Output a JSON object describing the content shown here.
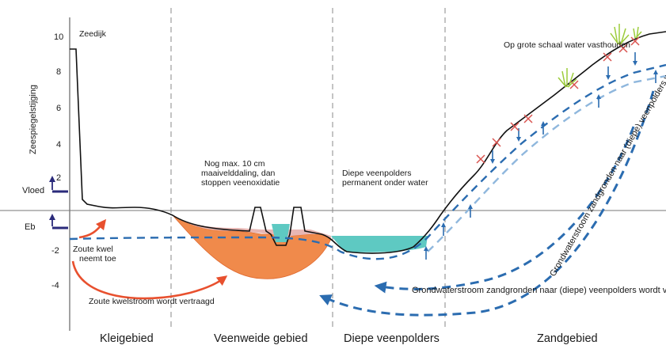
{
  "y_axis": {
    "title": "Zeespiegelstijging",
    "ticks": [
      "10",
      "8",
      "6",
      "4",
      "2",
      "-2",
      "-4"
    ]
  },
  "tide_labels": {
    "high": "Vloed",
    "low": "Eb"
  },
  "labels": {
    "dike": "Zeedijk",
    "peat_note_1": "Nog max. 10 cm",
    "peat_note_2": "maaivelddaling, dan",
    "peat_note_3": "stoppen veenoxidatie",
    "polder_note_1": "Diepe veenpolders",
    "polder_note_2": "permanent onder water",
    "sand_note": "Op grote schaal water vasthouden",
    "seepage_1": "Zoute kwel",
    "seepage_2": "neemt toe",
    "seepage_flow": "Zoute kwelstroom wordt vertraagd",
    "groundwater_flow_1": "Grondwaterstroom zandgronden naar (diepe) veenpolders wordt verminderd",
    "groundwater_flow_2": "Grondwaterstroom zandgronden naar (diepe) veenpolders wordt verminderd"
  },
  "zones": [
    "Kleigebied",
    "Veenweide gebied",
    "Diepe veenpolders",
    "Zandgebied"
  ],
  "colors": {
    "peat": "#f08a4b",
    "water": "#5ec9c2",
    "groundwater": "#2b6cb0",
    "groundwater_light": "#8fb7dd",
    "saline_arrow": "#e8502e",
    "tide_marker": "#2a2a7a",
    "reed": "#9ccc3b",
    "cross": "#d9534f"
  },
  "icons": [
    "up-arrow-icon",
    "down-arrow-icon",
    "reed-icon",
    "cross-icon"
  ]
}
